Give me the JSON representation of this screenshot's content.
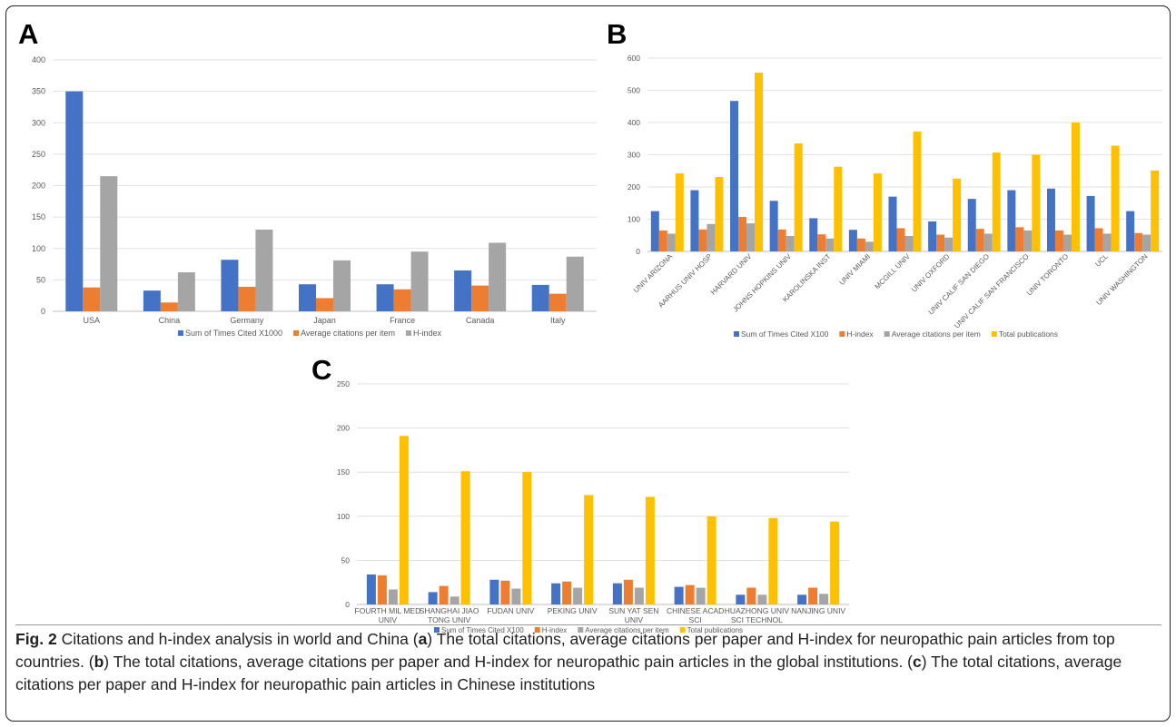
{
  "colors": {
    "blue": "#4472C4",
    "orange": "#ED7D31",
    "gray": "#A5A5A5",
    "yellow": "#FFC000",
    "grid": "#d9d9d9",
    "axis": "#bfbfbf",
    "tick_text": "#595959"
  },
  "panels": {
    "a": {
      "letter": "A"
    },
    "b": {
      "letter": "B"
    },
    "c": {
      "letter": "C"
    }
  },
  "caption": {
    "fig_label": "Fig. 2",
    "text_1": " Citations and h-index analysis in world and China (",
    "a": "a",
    "text_2": ") The total citations, average citations per paper and H-index for neuropathic pain articles from top countries. (",
    "b": "b",
    "text_3": ") The total citations, average citations per paper and H-index for neuropathic pain articles in the global institutions. (",
    "c": "c",
    "text_4": ") The total citations, average citations per paper and H-index for neuropathic pain articles in Chinese institutions"
  },
  "chart_data": [
    {
      "panel": "A",
      "type": "bar",
      "categories": [
        "USA",
        "China",
        "Germany",
        "Japan",
        "France",
        "Canada",
        "Italy"
      ],
      "series": [
        {
          "name": "Sum of Times Cited X1000",
          "color": "blue",
          "values": [
            350,
            33,
            82,
            43,
            43,
            65,
            42
          ]
        },
        {
          "name": "Average citations per item",
          "color": "orange",
          "values": [
            38,
            14,
            39,
            21,
            35,
            41,
            28
          ]
        },
        {
          "name": "H-index",
          "color": "gray",
          "values": [
            215,
            62,
            130,
            81,
            95,
            109,
            87
          ]
        }
      ],
      "ylim": [
        0,
        400
      ],
      "yticks": [
        0,
        50,
        100,
        150,
        200,
        250,
        300,
        350,
        400
      ],
      "grid": true,
      "legend": "bottom"
    },
    {
      "panel": "B",
      "type": "bar",
      "categories": [
        "UNIV ARIZONA",
        "AARHUS UNIV HOSP",
        "HARVARD UNIV",
        "JOHNS HOPKINS UNIV",
        "KAROLINSKA INST",
        "UNIV MIAMI",
        "MCGILL UNIV",
        "UNIV OXFORD",
        "UNIV CALIF SAN DIEGO",
        "UNIV CALIF SAN FRANCISCO",
        "UNIV TORONTO",
        "UCL",
        "UNIV WASHINGTON"
      ],
      "series": [
        {
          "name": "Sum of Times Cited X100",
          "color": "blue",
          "values": [
            125,
            190,
            467,
            157,
            103,
            67,
            170,
            93,
            163,
            190,
            195,
            172,
            125
          ]
        },
        {
          "name": "H-index",
          "color": "orange",
          "values": [
            65,
            68,
            107,
            68,
            53,
            40,
            72,
            52,
            70,
            75,
            65,
            72,
            57
          ]
        },
        {
          "name": "Average citations per item",
          "color": "gray",
          "values": [
            55,
            85,
            87,
            48,
            40,
            30,
            48,
            43,
            55,
            65,
            52,
            55,
            52
          ]
        },
        {
          "name": "Total publications",
          "color": "yellow",
          "values": [
            242,
            231,
            555,
            335,
            263,
            242,
            372,
            226,
            307,
            300,
            400,
            328,
            251
          ]
        }
      ],
      "ylim": [
        0,
        600
      ],
      "yticks": [
        0,
        100,
        200,
        300,
        400,
        500,
        600
      ],
      "grid": true,
      "legend": "bottom"
    },
    {
      "panel": "C",
      "type": "bar",
      "categories": [
        [
          "FOURTH MIL MED",
          "UNIV"
        ],
        [
          "SHANGHAI JIAO",
          "TONG UNIV"
        ],
        [
          "FUDAN UNIV"
        ],
        [
          "PEKING UNIV"
        ],
        [
          "SUN YAT SEN",
          "UNIV"
        ],
        [
          "CHINESE ACAD",
          "SCI"
        ],
        [
          "HUAZHONG UNIV",
          "SCI TECHNOL"
        ],
        [
          "NANJING UNIV"
        ]
      ],
      "series": [
        {
          "name": "Sum of Times Cited X100",
          "color": "blue",
          "values": [
            34,
            14,
            28,
            24,
            24,
            20,
            11,
            11
          ]
        },
        {
          "name": "H-index",
          "color": "orange",
          "values": [
            33,
            21,
            27,
            26,
            28,
            22,
            19,
            19
          ]
        },
        {
          "name": "Average citations per item",
          "color": "gray",
          "values": [
            17,
            9,
            18,
            19,
            19,
            19,
            11,
            12
          ]
        },
        {
          "name": "Total publications",
          "color": "yellow",
          "values": [
            191,
            151,
            150,
            124,
            122,
            100,
            98,
            94
          ]
        }
      ],
      "ylim": [
        0,
        250
      ],
      "yticks": [
        0,
        50,
        100,
        150,
        200,
        250
      ],
      "grid": true,
      "legend": "bottom"
    }
  ]
}
